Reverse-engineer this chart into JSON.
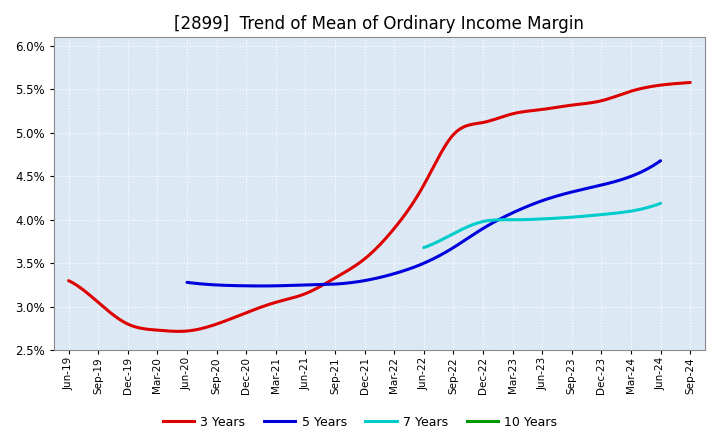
{
  "title": "[2899]  Trend of Mean of Ordinary Income Margin",
  "title_fontsize": 12,
  "background_color": "#ffffff",
  "plot_bg_color": "#dce9f5",
  "grid_color": "#ffffff",
  "ylim": [
    0.025,
    0.061
  ],
  "yticks": [
    0.025,
    0.03,
    0.035,
    0.04,
    0.045,
    0.05,
    0.055,
    0.06
  ],
  "x_labels": [
    "Jun-19",
    "Sep-19",
    "Dec-19",
    "Mar-20",
    "Jun-20",
    "Sep-20",
    "Dec-20",
    "Mar-21",
    "Jun-21",
    "Sep-21",
    "Dec-21",
    "Mar-22",
    "Jun-22",
    "Sep-22",
    "Dec-22",
    "Mar-23",
    "Jun-23",
    "Sep-23",
    "Dec-23",
    "Mar-24",
    "Jun-24",
    "Sep-24"
  ],
  "series": {
    "3 Years": {
      "color": "#dd0000",
      "linewidth": 2.2,
      "values": [
        3.3,
        3.05,
        2.8,
        2.73,
        2.72,
        2.8,
        2.93,
        3.05,
        3.15,
        3.33,
        3.55,
        3.9,
        4.4,
        4.98,
        5.12,
        5.22,
        5.27,
        5.32,
        5.37,
        5.48,
        5.55,
        5.58
      ]
    },
    "5 Years": {
      "color": "#0000dd",
      "linewidth": 2.2,
      "values": [
        null,
        null,
        null,
        null,
        3.28,
        3.25,
        3.24,
        3.24,
        3.25,
        3.26,
        3.3,
        3.38,
        3.5,
        3.68,
        3.9,
        4.08,
        4.22,
        4.32,
        4.4,
        4.5,
        4.68,
        null
      ]
    },
    "7 Years": {
      "color": "#00cccc",
      "linewidth": 2.2,
      "values": [
        null,
        null,
        null,
        null,
        null,
        null,
        null,
        null,
        null,
        null,
        null,
        null,
        3.68,
        3.84,
        3.98,
        4.0,
        4.01,
        4.03,
        4.06,
        4.1,
        4.19,
        null
      ]
    },
    "10 Years": {
      "color": "#009900",
      "linewidth": 2.2,
      "values": [
        null,
        null,
        null,
        null,
        null,
        null,
        null,
        null,
        null,
        null,
        null,
        null,
        null,
        null,
        null,
        null,
        null,
        null,
        null,
        null,
        null,
        null
      ]
    }
  },
  "legend_entries": [
    "3 Years",
    "5 Years",
    "7 Years",
    "10 Years"
  ],
  "legend_colors": [
    "#dd0000",
    "#0000dd",
    "#00cccc",
    "#009900"
  ]
}
